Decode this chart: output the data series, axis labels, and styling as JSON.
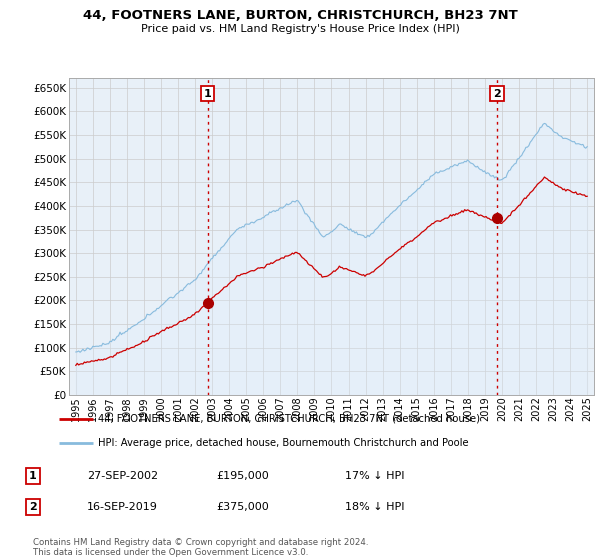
{
  "title": "44, FOOTNERS LANE, BURTON, CHRISTCHURCH, BH23 7NT",
  "subtitle": "Price paid vs. HM Land Registry's House Price Index (HPI)",
  "ylim": [
    0,
    670000
  ],
  "yticks": [
    0,
    50000,
    100000,
    150000,
    200000,
    250000,
    300000,
    350000,
    400000,
    450000,
    500000,
    550000,
    600000,
    650000
  ],
  "xlim_start": 1994.6,
  "xlim_end": 2025.4,
  "sale1_date": 2002.74,
  "sale1_price": 195000,
  "sale1_label": "1",
  "sale2_date": 2019.71,
  "sale2_price": 375000,
  "sale2_label": "2",
  "red_line_color": "#cc0000",
  "blue_line_color": "#88bbdd",
  "blue_fill_color": "#ddeeff",
  "sale_marker_color": "#aa0000",
  "dashed_line_color": "#cc0000",
  "grid_color": "#cccccc",
  "background_color": "#e8f0f8",
  "legend_label_red": "44, FOOTNERS LANE, BURTON, CHRISTCHURCH, BH23 7NT (detached house)",
  "legend_label_blue": "HPI: Average price, detached house, Bournemouth Christchurch and Poole",
  "table_row1": [
    "1",
    "27-SEP-2002",
    "£195,000",
    "17% ↓ HPI"
  ],
  "table_row2": [
    "2",
    "16-SEP-2019",
    "£375,000",
    "18% ↓ HPI"
  ],
  "footer": "Contains HM Land Registry data © Crown copyright and database right 2024.\nThis data is licensed under the Open Government Licence v3.0."
}
